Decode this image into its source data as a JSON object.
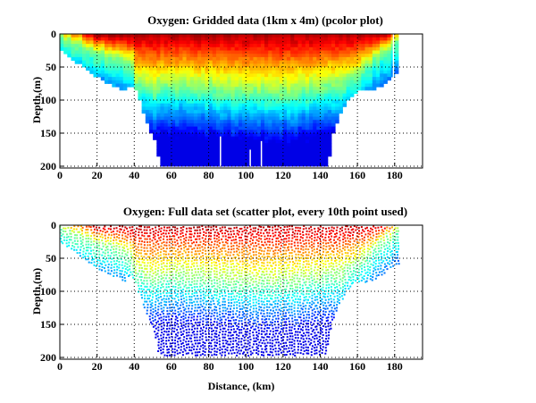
{
  "chart_data": [
    {
      "type": "heatmap",
      "title": "Oxygen: Gridded data (1km x 4m) (pcolor plot)",
      "xlabel": "",
      "ylabel": "Depth,(m)",
      "xlim": [
        0,
        195
      ],
      "ylim": [
        200,
        0
      ],
      "y_reversed": true,
      "xticks": [
        "0",
        "20",
        "40",
        "60",
        "80",
        "100",
        "120",
        "140",
        "160",
        "180"
      ],
      "yticks": [
        "0",
        "50",
        "100",
        "150",
        "200"
      ],
      "grid": "dotted",
      "colormap": "jet",
      "bottom_depth_m": {
        "x": [
          0,
          5,
          10,
          15,
          20,
          25,
          30,
          35,
          37,
          40,
          42,
          45,
          50,
          53,
          143,
          146,
          150,
          155,
          160,
          165,
          170,
          175,
          180,
          182
        ],
        "y": [
          25,
          35,
          45,
          55,
          65,
          72,
          78,
          85,
          75,
          85,
          100,
          125,
          160,
          196,
          196,
          150,
          120,
          95,
          85,
          85,
          80,
          70,
          60,
          60
        ]
      },
      "oxycline_depth_m": {
        "x": [
          0,
          10,
          20,
          30,
          38,
          40,
          50,
          60,
          80,
          100,
          120,
          140,
          150,
          157,
          160,
          170,
          180,
          182
        ],
        "y": [
          5,
          15,
          25,
          35,
          45,
          70,
          80,
          75,
          80,
          85,
          85,
          80,
          75,
          65,
          60,
          30,
          10,
          5
        ]
      }
    },
    {
      "type": "scatter",
      "title": "Oxygen: Full data set (scatter plot, every 10th point used)",
      "xlabel": "Distance, (km)",
      "ylabel": "Depth,(m)",
      "xlim": [
        0,
        195
      ],
      "ylim": [
        200,
        0
      ],
      "y_reversed": true,
      "xticks": [
        "0",
        "20",
        "40",
        "60",
        "80",
        "100",
        "120",
        "140",
        "160",
        "180"
      ],
      "yticks": [
        "0",
        "50",
        "100",
        "150",
        "200"
      ],
      "grid": "dotted",
      "colormap": "jet"
    }
  ]
}
